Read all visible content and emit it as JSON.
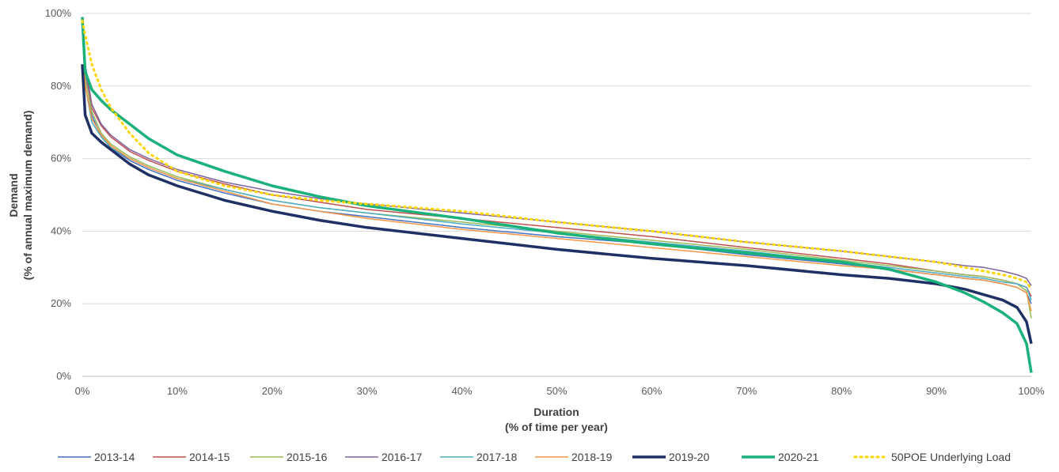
{
  "chart_data": {
    "type": "line",
    "title": "",
    "xlabel": {
      "line1": "Duration",
      "line2": "(% of time per year)"
    },
    "ylabel": {
      "line1": "Demand",
      "line2": "(% of annual maximum demand)"
    },
    "xlim": [
      0,
      100
    ],
    "ylim": [
      0,
      100
    ],
    "x_ticks": [
      {
        "value": 0,
        "label": "0%"
      },
      {
        "value": 10,
        "label": "10%"
      },
      {
        "value": 20,
        "label": "20%"
      },
      {
        "value": 30,
        "label": "30%"
      },
      {
        "value": 40,
        "label": "40%"
      },
      {
        "value": 50,
        "label": "50%"
      },
      {
        "value": 60,
        "label": "60%"
      },
      {
        "value": 70,
        "label": "70%"
      },
      {
        "value": 80,
        "label": "80%"
      },
      {
        "value": 90,
        "label": "90%"
      },
      {
        "value": 100,
        "label": "100%"
      }
    ],
    "y_ticks": [
      {
        "value": 0,
        "label": "0%"
      },
      {
        "value": 20,
        "label": "20%"
      },
      {
        "value": 40,
        "label": "40%"
      },
      {
        "value": 60,
        "label": "60%"
      },
      {
        "value": 80,
        "label": "80%"
      },
      {
        "value": 100,
        "label": "100%"
      }
    ],
    "grid": "horizontal",
    "legend_position": "bottom",
    "x": [
      0,
      0.3,
      1,
      2,
      3,
      5,
      7,
      10,
      15,
      20,
      25,
      30,
      40,
      50,
      60,
      70,
      80,
      85,
      90,
      93,
      95,
      97,
      98.5,
      99.5,
      100
    ],
    "series": [
      {
        "name": "2013-14",
        "color": "#4472C4",
        "width": 1.5,
        "dash": "solid",
        "values": [
          97,
          83,
          72,
          66,
          63,
          59.5,
          57,
          54,
          50.5,
          47.5,
          45.5,
          44,
          41,
          38.5,
          36.5,
          33.5,
          31,
          29.5,
          28,
          27,
          26.5,
          25.5,
          24.5,
          23,
          20
        ]
      },
      {
        "name": "2014-15",
        "color": "#C0504D",
        "width": 1.5,
        "dash": "solid",
        "values": [
          97,
          85,
          74,
          69,
          66,
          62,
          59.5,
          56.5,
          53,
          50,
          48,
          46,
          43.5,
          41,
          38.5,
          35.5,
          32.5,
          31,
          29,
          28,
          27.5,
          26.5,
          25.5,
          24.5,
          22
        ]
      },
      {
        "name": "2015-16",
        "color": "#9BBB59",
        "width": 1.5,
        "dash": "solid",
        "values": [
          97,
          82,
          73,
          67,
          64,
          60.5,
          58,
          55,
          51.5,
          48.5,
          46.5,
          45,
          42.5,
          40,
          37.5,
          35,
          32,
          30.5,
          29,
          28,
          27.5,
          26.5,
          25.5,
          23.5,
          16
        ]
      },
      {
        "name": "2016-17",
        "color": "#8064A2",
        "width": 1.5,
        "dash": "solid",
        "values": [
          97,
          86,
          75,
          69.5,
          66.5,
          62.5,
          60,
          57,
          53.5,
          51,
          49,
          47.5,
          45,
          42.5,
          40,
          37,
          34.5,
          33,
          31.5,
          30.5,
          30,
          29,
          28,
          27,
          25
        ]
      },
      {
        "name": "2017-18",
        "color": "#4BACC6",
        "width": 1.5,
        "dash": "solid",
        "values": [
          97,
          80,
          70,
          66,
          63,
          60,
          57.5,
          54.5,
          51.5,
          48.5,
          46.5,
          45,
          42,
          39.5,
          37,
          34.5,
          31.5,
          30,
          28.5,
          27.5,
          27,
          26,
          25.5,
          24.5,
          21
        ]
      },
      {
        "name": "2018-19",
        "color": "#F79646",
        "width": 1.5,
        "dash": "solid",
        "values": [
          96,
          80,
          71,
          66.5,
          63.5,
          60,
          57.5,
          54.5,
          51,
          47.5,
          45.5,
          43.5,
          40.5,
          38,
          35.5,
          33,
          30.5,
          29.5,
          28,
          27,
          26.5,
          25.5,
          24.5,
          23,
          18
        ]
      },
      {
        "name": "2019-20",
        "color": "#1F3064",
        "width": 3.5,
        "dash": "solid",
        "values": [
          86,
          72,
          67,
          64.5,
          62.5,
          58.5,
          55.5,
          52.5,
          48.5,
          45.5,
          43,
          41,
          38,
          35,
          32.5,
          30.5,
          28,
          27,
          25.5,
          24,
          22.5,
          21,
          19,
          15,
          9
        ]
      },
      {
        "name": "2020-21",
        "color": "#1BB17A",
        "width": 3.5,
        "dash": "solid",
        "values": [
          99,
          84,
          79,
          76,
          73.5,
          69.5,
          65.5,
          61,
          56.5,
          52.5,
          49.5,
          47,
          43.5,
          39.5,
          36.5,
          34,
          31.5,
          29.5,
          26,
          23,
          20.5,
          17.5,
          14.5,
          9,
          1
        ]
      },
      {
        "name": "50POE Underlying Load",
        "color": "#FFD700",
        "width": 3,
        "dash": "dotted",
        "values": [
          98,
          94,
          86,
          79,
          74,
          67,
          61.5,
          56.5,
          52.5,
          50,
          48.5,
          47.5,
          45.5,
          42.5,
          40,
          37,
          34.5,
          33,
          31.5,
          30,
          29,
          28,
          27,
          26,
          24
        ]
      }
    ]
  }
}
